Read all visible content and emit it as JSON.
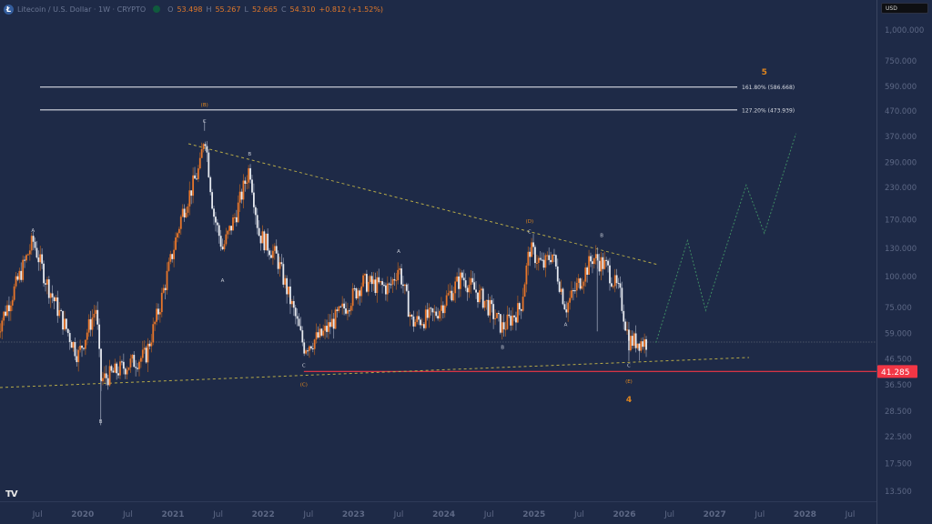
{
  "header": {
    "symbol_icon": "litecoin-logo-icon",
    "symbol_icon_glyph": "Ł",
    "title": "Litecoin / U.S. Dollar · 1W · CRYPTO",
    "market_status_icon": "market-open-dot-icon",
    "ohlc": [
      {
        "key": "O",
        "value": "53.498"
      },
      {
        "key": "H",
        "value": "55.267"
      },
      {
        "key": "L",
        "value": "52.665"
      },
      {
        "key": "C",
        "value": "54.310"
      }
    ],
    "change": "+0.812 (+1.52%)"
  },
  "currency_button": "USD",
  "branding": "TV",
  "colors": {
    "background": "#1e2a47",
    "up": "#e8762b",
    "down": "#e6e9ef",
    "wick_up": "#a35a26",
    "wick_down": "#8a93a8",
    "axis_text": "#5d6885",
    "price_line_red": "#f23645",
    "fib_line": "#d8dbe3",
    "trendline": "#b5a948",
    "projection": "#3e8a64",
    "wave_label_orange": "#e0861f",
    "wave_label_white": "#c8ccd6"
  },
  "chart_data": {
    "type": "candlestick",
    "title": "Litecoin / U.S. Dollar · 1W · CRYPTO",
    "scale": "log",
    "ylabel": "USD",
    "y_ticks": [
      "1,000.000",
      "750.000",
      "590.000",
      "470.000",
      "370.000",
      "290.000",
      "230.000",
      "170.000",
      "130.000",
      "100.000",
      "75.000",
      "59.000",
      "46.500",
      "36.500",
      "28.500",
      "22.500",
      "17.500",
      "13.500"
    ],
    "x_ticks": [
      "Jul",
      "2020",
      "Jul",
      "2021",
      "Jul",
      "2022",
      "Jul",
      "2023",
      "Jul",
      "2024",
      "Jul",
      "2025",
      "Jul",
      "2026",
      "Jul",
      "2027",
      "Jul",
      "2028",
      "Jul"
    ],
    "current_price_label": "41.285",
    "last_close": 54.31,
    "price_path": [
      {
        "t": 2019.05,
        "p": 60
      },
      {
        "t": 2019.25,
        "p": 90
      },
      {
        "t": 2019.45,
        "p": 140
      },
      {
        "t": 2019.6,
        "p": 95
      },
      {
        "t": 2019.75,
        "p": 70
      },
      {
        "t": 2019.95,
        "p": 48
      },
      {
        "t": 2020.15,
        "p": 75
      },
      {
        "t": 2020.2,
        "p": 38
      },
      {
        "t": 2020.5,
        "p": 44
      },
      {
        "t": 2020.7,
        "p": 48
      },
      {
        "t": 2020.85,
        "p": 75
      },
      {
        "t": 2021.1,
        "p": 180
      },
      {
        "t": 2021.3,
        "p": 280
      },
      {
        "t": 2021.35,
        "p": 390
      },
      {
        "t": 2021.45,
        "p": 180
      },
      {
        "t": 2021.55,
        "p": 130
      },
      {
        "t": 2021.7,
        "p": 180
      },
      {
        "t": 2021.85,
        "p": 280
      },
      {
        "t": 2021.95,
        "p": 150
      },
      {
        "t": 2022.15,
        "p": 120
      },
      {
        "t": 2022.35,
        "p": 70
      },
      {
        "t": 2022.45,
        "p": 52
      },
      {
        "t": 2022.65,
        "p": 58
      },
      {
        "t": 2022.9,
        "p": 75
      },
      {
        "t": 2023.1,
        "p": 95
      },
      {
        "t": 2023.4,
        "p": 90
      },
      {
        "t": 2023.5,
        "p": 110
      },
      {
        "t": 2023.65,
        "p": 65
      },
      {
        "t": 2023.9,
        "p": 70
      },
      {
        "t": 2024.2,
        "p": 100
      },
      {
        "t": 2024.45,
        "p": 80
      },
      {
        "t": 2024.65,
        "p": 62
      },
      {
        "t": 2024.85,
        "p": 75
      },
      {
        "t": 2024.95,
        "p": 130
      },
      {
        "t": 2025.1,
        "p": 110
      },
      {
        "t": 2025.2,
        "p": 125
      },
      {
        "t": 2025.35,
        "p": 75
      },
      {
        "t": 2025.5,
        "p": 95
      },
      {
        "t": 2025.65,
        "p": 120
      },
      {
        "t": 2025.8,
        "p": 110
      },
      {
        "t": 2025.95,
        "p": 85
      },
      {
        "t": 2026.05,
        "p": 55
      },
      {
        "t": 2026.25,
        "p": 54.3
      }
    ],
    "wave_labels": [
      {
        "text": "A",
        "t": 2019.45,
        "p": 152,
        "color": "white"
      },
      {
        "text": "B",
        "t": 2020.2,
        "p": 25.5,
        "color": "white"
      },
      {
        "text": "(B)",
        "t": 2021.35,
        "p": 490,
        "color": "orange"
      },
      {
        "text": "C",
        "t": 2021.35,
        "p": 420,
        "color": "white"
      },
      {
        "text": "A",
        "t": 2021.55,
        "p": 95,
        "color": "white"
      },
      {
        "text": "B",
        "t": 2021.85,
        "p": 310,
        "color": "white"
      },
      {
        "text": "C",
        "t": 2022.45,
        "p": 43,
        "color": "white"
      },
      {
        "text": "(C)",
        "t": 2022.45,
        "p": 36,
        "color": "orange"
      },
      {
        "text": "A",
        "t": 2023.5,
        "p": 125,
        "color": "white"
      },
      {
        "text": "B",
        "t": 2024.65,
        "p": 51,
        "color": "white"
      },
      {
        "text": "(D)",
        "t": 2024.95,
        "p": 165,
        "color": "orange"
      },
      {
        "text": "C",
        "t": 2024.95,
        "p": 150,
        "color": "white"
      },
      {
        "text": "A",
        "t": 2025.35,
        "p": 63,
        "color": "white"
      },
      {
        "text": "B",
        "t": 2025.75,
        "p": 145,
        "color": "white"
      },
      {
        "text": "C",
        "t": 2026.05,
        "p": 43,
        "color": "white"
      },
      {
        "text": "(E)",
        "t": 2026.05,
        "p": 37,
        "color": "orange"
      },
      {
        "text": "4",
        "t": 2026.05,
        "p": 31,
        "color": "orange",
        "big": true
      },
      {
        "text": "5",
        "t": 2027.55,
        "p": 660,
        "color": "orange",
        "big": true
      }
    ],
    "fib_levels": [
      {
        "label": "161.80% (586.668)",
        "price": 586.668,
        "t_start": 2019.1,
        "t_end": 2027.3
      },
      {
        "label": "127.20% (473.939)",
        "price": 473.939,
        "t_start": 2019.1,
        "t_end": 2027.3
      }
    ],
    "trendlines": [
      {
        "name": "upper-triangle",
        "from": {
          "t": 2021.2,
          "p": 340
        },
        "to": {
          "t": 2026.8,
          "p": 113
        }
      },
      {
        "name": "lower-triangle",
        "from": {
          "t": 2018.7,
          "p": 38
        },
        "to": {
          "t": 2027.1,
          "p": 48.5
        }
      }
    ],
    "projection_path": [
      {
        "t": 2026.35,
        "p": 54
      },
      {
        "t": 2026.7,
        "p": 140
      },
      {
        "t": 2026.9,
        "p": 73
      },
      {
        "t": 2027.35,
        "p": 235
      },
      {
        "t": 2027.55,
        "p": 150
      },
      {
        "t": 2027.9,
        "p": 380
      }
    ],
    "horizontal_lines": [
      {
        "name": "support-41.285",
        "price": 41.285,
        "t_start": 2022.45,
        "color": "red"
      },
      {
        "name": "last-price-dotted",
        "price": 54.31,
        "t_start": 2018.7,
        "color": "grey-dotted"
      }
    ]
  }
}
